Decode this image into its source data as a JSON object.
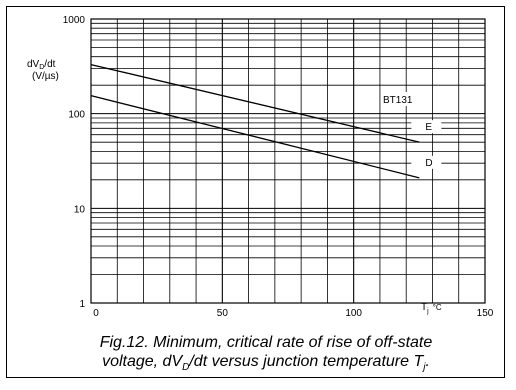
{
  "chart_data": {
    "type": "line",
    "x_scale": "linear",
    "y_scale": "log",
    "xlim": [
      0,
      150
    ],
    "ylim": [
      1,
      1000
    ],
    "x_ticks": [
      "0",
      "50",
      "100",
      "150"
    ],
    "y_ticks": [
      "1",
      "10",
      "100",
      "1000"
    ],
    "x_tick_values": [
      0,
      50,
      100,
      150
    ],
    "y_tick_values": [
      1,
      10,
      100,
      1000
    ],
    "ylabel_line1": "dV",
    "ylabel_sub": "D",
    "ylabel_line1_tail": "/dt",
    "ylabel_line2": "(V/µs)",
    "xlabel_main": "T",
    "xlabel_sub": "j",
    "xlabel_unit": "°C",
    "grid": true,
    "legend_text": "BT131",
    "series": [
      {
        "name": "E",
        "x": [
          0,
          125
        ],
        "y": [
          330,
          50
        ]
      },
      {
        "name": "D",
        "x": [
          0,
          125
        ],
        "y": [
          155,
          21
        ]
      }
    ]
  },
  "caption": {
    "line1": "Fig.12.  Minimum, critical rate of rise of off-state",
    "line2_a": "voltage, dV",
    "line2_sub1": "D",
    "line2_b": "/dt versus junction temperature T",
    "line2_sub2": "j",
    "line2_c": "."
  }
}
